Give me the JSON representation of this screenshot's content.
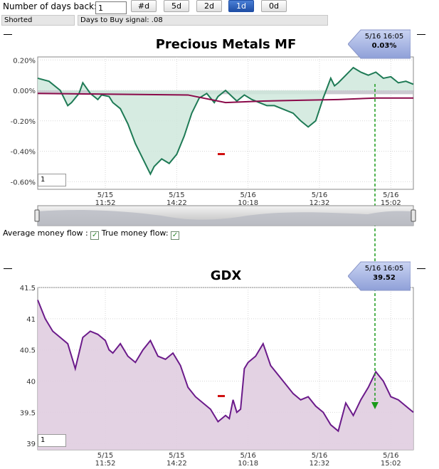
{
  "toolbar": {
    "days_back_label": "Number of days back:",
    "days_back_value": "1",
    "buttons": [
      "#d",
      "5d",
      "2d",
      "1d",
      "0d"
    ],
    "active_button": "1d"
  },
  "status": {
    "position": "Shorted",
    "signal": "Days to Buy signal: .08"
  },
  "top_chart": {
    "title": "Precious Metals MF",
    "tooltip_time": "5/16 16:05",
    "tooltip_value": "0.03%",
    "input_value": "1"
  },
  "legend": {
    "avg_label": "Average money flow :",
    "avg_checked": true,
    "true_label": "True money flow:",
    "true_checked": true,
    "check_glyph": "✓"
  },
  "bottom_chart": {
    "title": "GDX",
    "tooltip_time": "5/16 16:05",
    "tooltip_value": "39.52",
    "input_value": "1"
  },
  "colors": {
    "mf_line": "#1e7a55",
    "mf_fill": "#cfe7dc",
    "avg_line": "#8b0a4a",
    "gdx_line": "#6b1a8a",
    "gdx_fill": "#e0cde0",
    "crosshair": "#1a9a1a",
    "zero_band": "#bdbdc4"
  },
  "chart_data": [
    {
      "type": "area",
      "title": "Precious Metals MF",
      "y_unit": "%",
      "ylim": [
        -0.65,
        0.22
      ],
      "y_ticks": [
        0.2,
        0.0,
        -0.2,
        -0.4,
        -0.6
      ],
      "y_tick_labels": [
        "0.20%",
        "0.00%",
        "-0.20%",
        "-0.40%",
        "-0.60%"
      ],
      "x_tick_labels": [
        [
          "5/15",
          "11:52"
        ],
        [
          "5/15",
          "14:22"
        ],
        [
          "5/16",
          "10:18"
        ],
        [
          "5/16",
          "12:32"
        ],
        [
          "5/16",
          "15:02"
        ]
      ],
      "series": [
        {
          "name": "True money flow",
          "x": [
            0,
            3,
            6,
            8,
            9,
            11,
            12,
            14,
            16,
            17,
            19,
            20,
            22,
            24,
            26,
            28,
            30,
            31,
            33,
            35,
            37,
            39,
            41,
            43,
            45,
            47,
            48,
            50,
            53,
            55,
            57,
            59,
            61,
            63,
            65,
            68,
            70,
            72,
            74,
            76,
            78,
            79,
            80,
            82,
            84,
            86,
            88,
            90,
            92,
            94,
            96,
            98,
            100
          ],
          "values": [
            0.08,
            0.06,
            0.0,
            -0.1,
            -0.08,
            -0.02,
            0.05,
            -0.02,
            -0.06,
            -0.03,
            -0.04,
            -0.08,
            -0.12,
            -0.22,
            -0.35,
            -0.45,
            -0.55,
            -0.5,
            -0.45,
            -0.48,
            -0.42,
            -0.3,
            -0.15,
            -0.05,
            -0.02,
            -0.08,
            -0.04,
            0.0,
            -0.07,
            -0.03,
            -0.06,
            -0.08,
            -0.1,
            -0.1,
            -0.12,
            -0.15,
            -0.2,
            -0.24,
            -0.2,
            -0.05,
            0.08,
            0.03,
            0.05,
            0.1,
            0.15,
            0.12,
            0.1,
            0.12,
            0.08,
            0.09,
            0.05,
            0.06,
            0.04
          ]
        },
        {
          "name": "Average money flow",
          "x": [
            0,
            20,
            40,
            50,
            60,
            70,
            80,
            90,
            100
          ],
          "values": [
            -0.02,
            -0.025,
            -0.03,
            -0.08,
            -0.07,
            -0.065,
            -0.06,
            -0.05,
            -0.05
          ]
        }
      ],
      "grid": true
    },
    {
      "type": "area",
      "title": "GDX",
      "ylim": [
        38.9,
        41.5
      ],
      "y_ticks": [
        41.5,
        41,
        40.5,
        40,
        39.5,
        39
      ],
      "y_tick_labels": [
        "41.5",
        "41",
        "40.5",
        "40",
        "39.5",
        "39"
      ],
      "x_tick_labels": [
        [
          "5/15",
          "11:52"
        ],
        [
          "5/15",
          "14:22"
        ],
        [
          "5/16",
          "10:18"
        ],
        [
          "5/16",
          "12:32"
        ],
        [
          "5/16",
          "15:02"
        ]
      ],
      "series": [
        {
          "name": "GDX",
          "x": [
            0,
            2,
            4,
            6,
            8,
            10,
            12,
            14,
            16,
            18,
            19,
            20,
            22,
            24,
            26,
            28,
            30,
            32,
            34,
            36,
            38,
            40,
            42,
            44,
            46,
            48,
            50,
            51,
            52,
            53,
            54,
            55,
            56,
            58,
            60,
            62,
            64,
            66,
            68,
            70,
            72,
            74,
            76,
            78,
            80,
            82,
            84,
            86,
            88,
            90,
            92,
            94,
            96,
            98,
            100
          ],
          "values": [
            41.3,
            41.0,
            40.8,
            40.7,
            40.6,
            40.2,
            40.7,
            40.8,
            40.75,
            40.65,
            40.5,
            40.45,
            40.6,
            40.4,
            40.3,
            40.5,
            40.65,
            40.4,
            40.35,
            40.45,
            40.25,
            39.9,
            39.75,
            39.65,
            39.55,
            39.35,
            39.45,
            39.4,
            39.7,
            39.5,
            39.55,
            40.2,
            40.3,
            40.4,
            40.6,
            40.25,
            40.1,
            39.95,
            39.8,
            39.7,
            39.75,
            39.6,
            39.5,
            39.3,
            39.2,
            39.65,
            39.45,
            39.7,
            39.9,
            40.15,
            40.0,
            39.75,
            39.7,
            39.6,
            39.5
          ]
        }
      ],
      "grid": true
    }
  ]
}
